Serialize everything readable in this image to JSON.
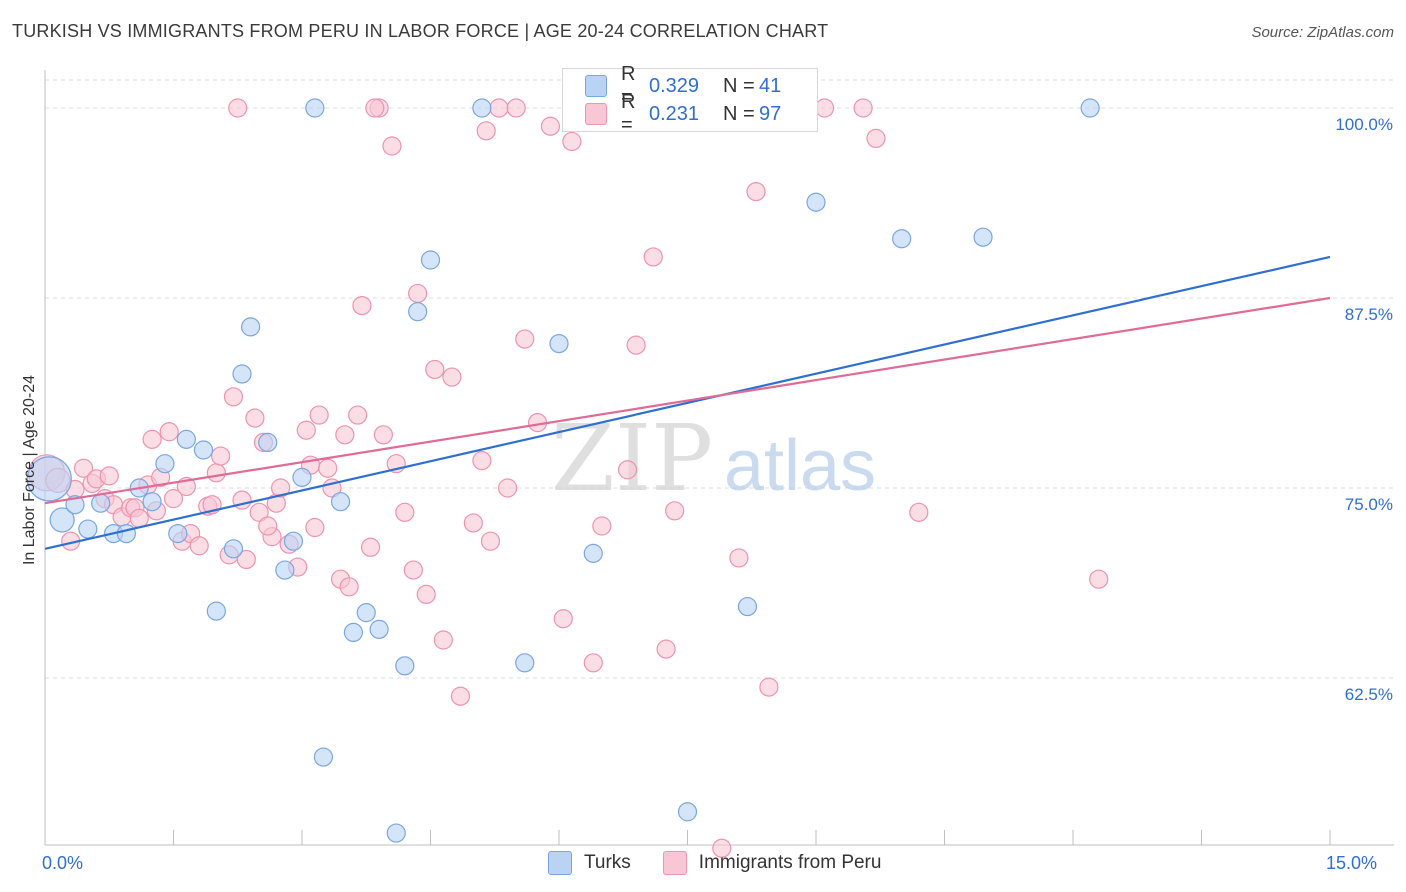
{
  "title": "TURKISH VS IMMIGRANTS FROM PERU IN LABOR FORCE | AGE 20-24 CORRELATION CHART",
  "source": "Source: ZipAtlas.com",
  "watermark": {
    "zip": "ZIP",
    "atlas": "atlas"
  },
  "legend_top": {
    "rows": [
      {
        "r_label": "R =",
        "r_value": "0.329",
        "n_label": "N =",
        "n_value": "41"
      },
      {
        "r_label": "R =",
        "r_value": "0.231",
        "n_label": "N =",
        "n_value": "97"
      }
    ]
  },
  "legend_bottom": {
    "turks": "Turks",
    "peru": "Immigrants from Peru"
  },
  "x_axis": {
    "min_label": "0.0%",
    "max_label": "15.0%"
  },
  "y_axis_label": "In Labor Force | Age 20-24",
  "colors": {
    "turks_fill": "#b9d3f5",
    "turks_stroke": "#7aa6e0",
    "turks_line": "#2e6fd0",
    "peru_fill": "#f9c6d6",
    "peru_stroke": "#ee93b0",
    "peru_line": "#e06b94",
    "tick_label": "#2f6fd1",
    "grid": "#dcdcdc"
  },
  "chart_data": {
    "type": "scatter",
    "xlim": [
      0,
      15
    ],
    "ylim": [
      52.5,
      102.5
    ],
    "yticks": [
      {
        "value": 100,
        "label": "100.0%"
      },
      {
        "value": 87.5,
        "label": "87.5%"
      },
      {
        "value": 75,
        "label": "75.0%"
      },
      {
        "value": 62.5,
        "label": "62.5%"
      }
    ],
    "grid": true,
    "series": [
      {
        "name": "Turks",
        "trend": {
          "x": [
            0,
            15
          ],
          "y": [
            71.0,
            90.2
          ]
        },
        "points": [
          [
            0.05,
            75.6,
            22
          ],
          [
            0.2,
            72.9,
            12
          ],
          [
            0.35,
            73.9,
            9
          ],
          [
            0.5,
            72.3,
            9
          ],
          [
            0.65,
            74.0,
            9
          ],
          [
            0.8,
            72.0,
            9
          ],
          [
            0.95,
            72.0,
            9
          ],
          [
            1.1,
            75.0,
            9
          ],
          [
            1.25,
            74.1,
            9
          ],
          [
            1.4,
            76.6,
            9
          ],
          [
            1.55,
            72.0,
            9
          ],
          [
            1.65,
            78.2,
            9
          ],
          [
            1.85,
            77.5,
            9
          ],
          [
            2.0,
            66.9,
            9
          ],
          [
            2.2,
            71.0,
            9
          ],
          [
            2.3,
            82.5,
            9
          ],
          [
            2.4,
            85.6,
            9
          ],
          [
            2.6,
            78.0,
            9
          ],
          [
            2.8,
            69.6,
            9
          ],
          [
            2.9,
            71.5,
            9
          ],
          [
            3.0,
            75.7,
            9
          ],
          [
            3.15,
            100.0,
            9
          ],
          [
            3.25,
            57.3,
            9
          ],
          [
            3.45,
            74.1,
            9
          ],
          [
            3.6,
            65.5,
            9
          ],
          [
            3.75,
            66.8,
            9
          ],
          [
            3.9,
            65.7,
            9
          ],
          [
            4.1,
            52.3,
            9
          ],
          [
            4.2,
            63.3,
            9
          ],
          [
            4.35,
            86.6,
            9
          ],
          [
            4.5,
            90.0,
            9
          ],
          [
            5.1,
            100.0,
            9
          ],
          [
            5.6,
            63.5,
            9
          ],
          [
            6.0,
            84.5,
            9
          ],
          [
            6.4,
            70.7,
            9
          ],
          [
            7.5,
            53.7,
            9
          ],
          [
            8.2,
            67.2,
            9
          ],
          [
            9.0,
            93.8,
            9
          ],
          [
            10.0,
            91.4,
            9
          ],
          [
            10.95,
            91.5,
            9
          ],
          [
            12.2,
            100.0,
            9
          ]
        ]
      },
      {
        "name": "Immigrants from Peru",
        "trend": {
          "x": [
            0,
            15
          ],
          "y": [
            74.0,
            87.5
          ]
        },
        "points": [
          [
            0.02,
            76.0,
            18
          ],
          [
            0.15,
            75.5,
            12
          ],
          [
            0.3,
            71.5,
            9
          ],
          [
            0.35,
            74.9,
            9
          ],
          [
            0.45,
            76.3,
            9
          ],
          [
            0.55,
            75.3,
            9
          ],
          [
            0.6,
            75.6,
            9
          ],
          [
            0.7,
            74.3,
            9
          ],
          [
            0.8,
            73.9,
            9
          ],
          [
            0.9,
            73.1,
            9
          ],
          [
            1.0,
            73.7,
            9
          ],
          [
            1.05,
            73.7,
            9
          ],
          [
            1.1,
            73.0,
            9
          ],
          [
            1.2,
            75.2,
            9
          ],
          [
            1.3,
            73.5,
            9
          ],
          [
            1.35,
            75.7,
            9
          ],
          [
            1.45,
            78.7,
            9
          ],
          [
            1.5,
            74.3,
            9
          ],
          [
            1.6,
            71.5,
            9
          ],
          [
            1.65,
            75.1,
            9
          ],
          [
            1.7,
            72.0,
            9
          ],
          [
            1.8,
            71.2,
            9
          ],
          [
            1.9,
            73.8,
            9
          ],
          [
            1.95,
            73.9,
            9
          ],
          [
            2.0,
            76.0,
            9
          ],
          [
            2.05,
            77.1,
            9
          ],
          [
            2.15,
            70.6,
            9
          ],
          [
            2.2,
            81.0,
            9
          ],
          [
            2.3,
            74.2,
            9
          ],
          [
            2.35,
            70.3,
            9
          ],
          [
            2.45,
            79.6,
            9
          ],
          [
            2.5,
            73.4,
            9
          ],
          [
            2.55,
            78.0,
            9
          ],
          [
            2.65,
            71.8,
            9
          ],
          [
            2.7,
            74.0,
            9
          ],
          [
            2.75,
            75.0,
            9
          ],
          [
            2.85,
            71.3,
            9
          ],
          [
            2.95,
            69.8,
            9
          ],
          [
            3.05,
            78.8,
            9
          ],
          [
            3.1,
            76.5,
            9
          ],
          [
            3.15,
            72.4,
            9
          ],
          [
            3.2,
            79.8,
            9
          ],
          [
            3.3,
            76.3,
            9
          ],
          [
            3.35,
            75.0,
            9
          ],
          [
            3.45,
            69.0,
            9
          ],
          [
            3.5,
            78.5,
            9
          ],
          [
            3.55,
            68.5,
            9
          ],
          [
            3.65,
            79.8,
            9
          ],
          [
            3.7,
            87.0,
            9
          ],
          [
            3.8,
            71.1,
            9
          ],
          [
            3.9,
            100.0,
            9
          ],
          [
            3.95,
            78.5,
            9
          ],
          [
            4.1,
            76.6,
            9
          ],
          [
            4.2,
            73.4,
            9
          ],
          [
            4.3,
            69.6,
            9
          ],
          [
            4.35,
            87.8,
            9
          ],
          [
            4.45,
            68.0,
            9
          ],
          [
            4.55,
            82.8,
            9
          ],
          [
            4.65,
            65.0,
            9
          ],
          [
            4.75,
            82.3,
            9
          ],
          [
            4.85,
            61.3,
            9
          ],
          [
            5.0,
            72.7,
            9
          ],
          [
            5.1,
            76.8,
            9
          ],
          [
            5.2,
            71.5,
            9
          ],
          [
            5.3,
            100.0,
            9
          ],
          [
            5.4,
            75.0,
            9
          ],
          [
            5.5,
            100.0,
            9
          ],
          [
            5.6,
            84.8,
            9
          ],
          [
            5.75,
            79.3,
            9
          ],
          [
            5.9,
            98.8,
            9
          ],
          [
            6.05,
            66.4,
            9
          ],
          [
            6.15,
            97.8,
            9
          ],
          [
            6.25,
            100.0,
            9
          ],
          [
            6.4,
            63.5,
            9
          ],
          [
            6.5,
            72.5,
            9
          ],
          [
            6.8,
            76.2,
            9
          ],
          [
            6.9,
            84.4,
            9
          ],
          [
            7.1,
            90.2,
            9
          ],
          [
            7.25,
            64.4,
            9
          ],
          [
            7.35,
            73.5,
            9
          ],
          [
            7.9,
            51.3,
            9
          ],
          [
            8.1,
            70.4,
            9
          ],
          [
            8.3,
            94.5,
            9
          ],
          [
            8.45,
            61.9,
            9
          ],
          [
            9.1,
            100.0,
            9
          ],
          [
            9.55,
            100.0,
            9
          ],
          [
            9.7,
            98.0,
            9
          ],
          [
            10.2,
            73.4,
            9
          ],
          [
            12.3,
            69.0,
            9
          ],
          [
            3.85,
            100.0,
            9
          ],
          [
            2.25,
            100.0,
            9
          ],
          [
            5.15,
            98.5,
            9
          ],
          [
            6.55,
            100.0,
            9
          ],
          [
            4.05,
            97.5,
            9
          ],
          [
            1.25,
            78.2,
            9
          ],
          [
            2.6,
            72.5,
            9
          ],
          [
            0.75,
            75.8,
            9
          ]
        ]
      }
    ]
  }
}
